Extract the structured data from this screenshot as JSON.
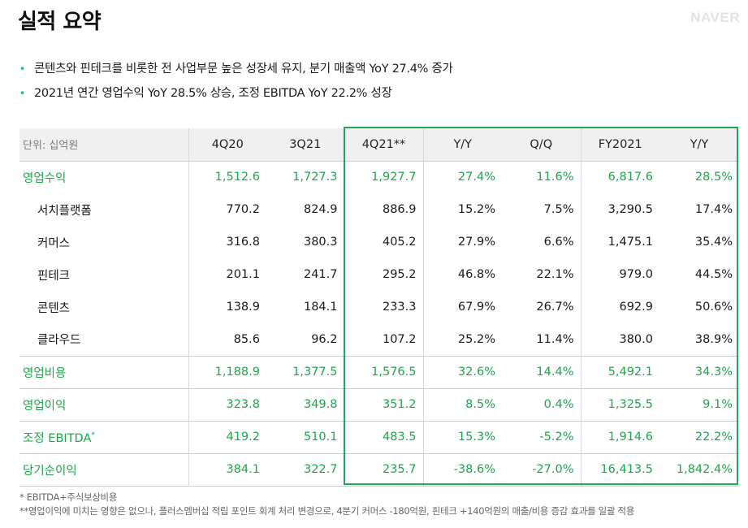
{
  "header": {
    "title": "실적 요약",
    "logo": "NAVER"
  },
  "bullets": [
    "콘텐츠와 핀테크를 비롯한 전 사업부문 높은 성장세 유지, 분기 매출액 YoY 27.4% 증가",
    "2021년 연간 영업수익 YoY 28.5% 상승, 조정 EBITDA YoY 22.2% 성장"
  ],
  "table": {
    "columns": [
      "단위: 십억원",
      "4Q20",
      "3Q21",
      "4Q21**",
      "Y/Y",
      "Q/Q",
      "FY2021",
      "Y/Y"
    ],
    "rows": [
      {
        "label": "영업수익",
        "values": [
          "1,512.6",
          "1,727.3",
          "1,927.7",
          "27.4%",
          "11.6%",
          "6,817.6",
          "28.5%"
        ]
      },
      {
        "label": "서치플랫폼",
        "values": [
          "770.2",
          "824.9",
          "886.9",
          "15.2%",
          "7.5%",
          "3,290.5",
          "17.4%"
        ]
      },
      {
        "label": "커머스",
        "values": [
          "316.8",
          "380.3",
          "405.2",
          "27.9%",
          "6.6%",
          "1,475.1",
          "35.4%"
        ]
      },
      {
        "label": "핀테크",
        "values": [
          "201.1",
          "241.7",
          "295.2",
          "46.8%",
          "22.1%",
          "979.0",
          "44.5%"
        ]
      },
      {
        "label": "콘텐츠",
        "values": [
          "138.9",
          "184.1",
          "233.3",
          "67.9%",
          "26.7%",
          "692.9",
          "50.6%"
        ]
      },
      {
        "label": "클라우드",
        "values": [
          "85.6",
          "96.2",
          "107.2",
          "25.2%",
          "11.4%",
          "380.0",
          "38.9%"
        ]
      },
      {
        "label": "영업비용",
        "values": [
          "1,188.9",
          "1,377.5",
          "1,576.5",
          "32.6%",
          "14.4%",
          "5,492.1",
          "34.3%"
        ]
      },
      {
        "label": "영업이익",
        "values": [
          "323.8",
          "349.8",
          "351.2",
          "8.5%",
          "0.4%",
          "1,325.5",
          "9.1%"
        ]
      },
      {
        "label": "조정 EBITDA",
        "label_sup": "*",
        "values": [
          "419.2",
          "510.1",
          "483.5",
          "15.3%",
          "-5.2%",
          "1,914.6",
          "22.2%"
        ]
      },
      {
        "label": "당기순이익",
        "values": [
          "384.1",
          "322.7",
          "235.7",
          "-38.6%",
          "-27.0%",
          "16,413.5",
          "1,842.4%"
        ]
      }
    ]
  },
  "notes": [
    "* EBITDA+주식보상비용",
    "**영업이익에 미치는 영향은 없으나, 플러스멤버십 적립 포인트 회계 처리 변경으로, 4분기 커머스 -180억원, 핀테크 +140억원의 매출/비용 증감 효과를 일괄 적용"
  ],
  "colors": {
    "accent": "#1faa4f",
    "header_bg": "#f0f0f0",
    "logo": "#e3e3e3"
  }
}
